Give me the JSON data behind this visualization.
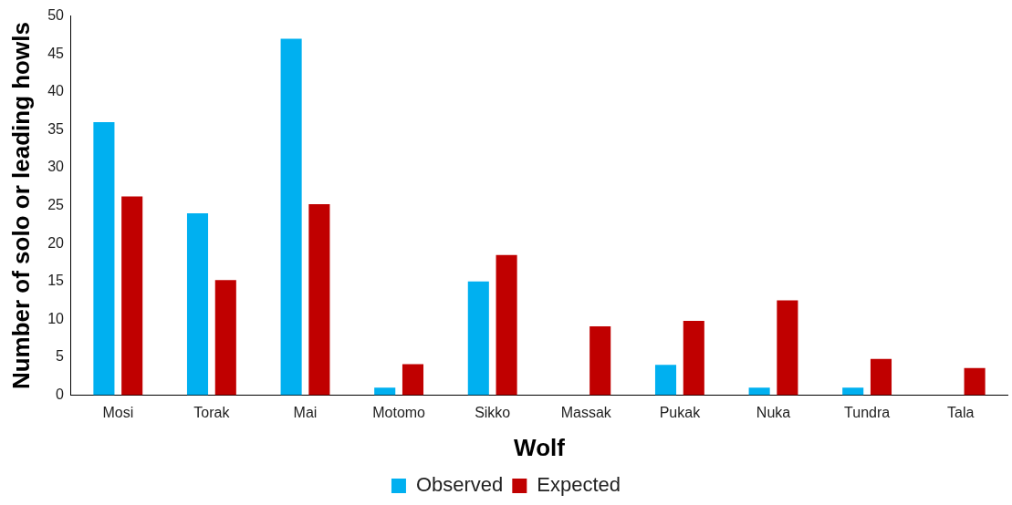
{
  "chart_data": {
    "type": "bar",
    "xlabel": "Wolf",
    "ylabel": "Number of solo or leading howls",
    "categories": [
      "Mosi",
      "Torak",
      "Mai",
      "Motomo",
      "Sikko",
      "Massak",
      "Pukak",
      "Nuka",
      "Tundra",
      "Tala"
    ],
    "series": [
      {
        "name": "Observed",
        "color": "#00b0f0",
        "values": [
          36,
          24,
          47,
          1,
          15,
          0,
          4,
          1,
          1,
          0
        ]
      },
      {
        "name": "Expected",
        "color": "#c00000",
        "values": [
          26.2,
          15.2,
          25.2,
          4.1,
          18.5,
          9.1,
          9.8,
          12.5,
          4.8,
          3.6
        ]
      }
    ],
    "ylim": [
      0,
      50
    ],
    "yticks": [
      0,
      5,
      10,
      15,
      20,
      25,
      30,
      35,
      40,
      45,
      50
    ],
    "grid": false,
    "legend": "bottom"
  }
}
